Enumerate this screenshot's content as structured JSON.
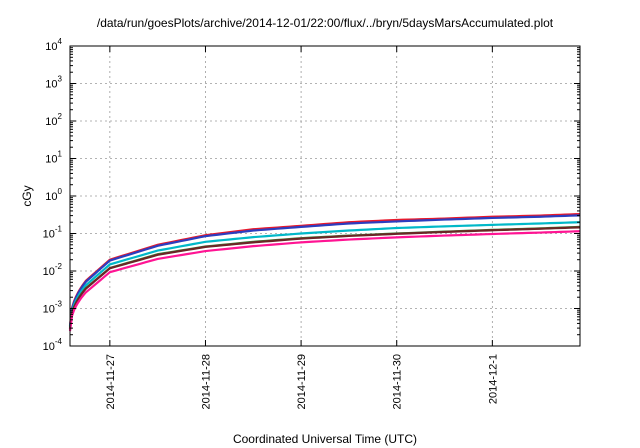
{
  "chart_data": {
    "type": "line",
    "title": "/data/run/goesPlots/archive/2014-12-01/22:00/flux/../bryn/5daysMarsAccumulated.plot",
    "xlabel": "Coordinated Universal Time (UTC)",
    "ylabel": "cGy",
    "y_scale": "log",
    "ylim": [
      0.0001,
      10000
    ],
    "y_ticks": [
      {
        "value": 0.0001,
        "base": "10",
        "exp": "-4"
      },
      {
        "value": 0.001,
        "base": "10",
        "exp": "-3"
      },
      {
        "value": 0.01,
        "base": "10",
        "exp": "-2"
      },
      {
        "value": 0.1,
        "base": "10",
        "exp": "-1"
      },
      {
        "value": 1,
        "base": "10",
        "exp": "0"
      },
      {
        "value": 10,
        "base": "10",
        "exp": "1"
      },
      {
        "value": 100,
        "base": "10",
        "exp": "2"
      },
      {
        "value": 1000,
        "base": "10",
        "exp": "3"
      },
      {
        "value": 10000,
        "base": "10",
        "exp": "4"
      }
    ],
    "xlim": [
      "2014-11-26 14:00",
      "2014-12-01 22:00"
    ],
    "x_ticks": [
      "2014-11-27",
      "2014-11-28",
      "2014-11-29",
      "2014-11-30",
      "2014-12-1"
    ],
    "grid": true,
    "legend": "none",
    "series": [
      {
        "color": "#e8192c",
        "points": [
          [
            "2014-11-26 14:00",
            0.00035
          ],
          [
            "2014-11-26 18:00",
            0.0055
          ],
          [
            "2014-11-27 00:00",
            0.02
          ],
          [
            "2014-11-27 12:00",
            0.05
          ],
          [
            "2014-11-28 00:00",
            0.09
          ],
          [
            "2014-11-28 12:00",
            0.13
          ],
          [
            "2014-11-29 00:00",
            0.16
          ],
          [
            "2014-11-29 12:00",
            0.2
          ],
          [
            "2014-11-30 00:00",
            0.23
          ],
          [
            "2014-11-30 12:00",
            0.25
          ],
          [
            "2014-12-01 00:00",
            0.28
          ],
          [
            "2014-12-01 12:00",
            0.3
          ],
          [
            "2014-12-01 22:00",
            0.33
          ]
        ]
      },
      {
        "color": "#2c3dbf",
        "points": [
          [
            "2014-11-26 14:00",
            0.00033
          ],
          [
            "2014-11-26 18:00",
            0.0052
          ],
          [
            "2014-11-27 00:00",
            0.019
          ],
          [
            "2014-11-27 12:00",
            0.047
          ],
          [
            "2014-11-28 00:00",
            0.085
          ],
          [
            "2014-11-28 12:00",
            0.12
          ],
          [
            "2014-11-29 00:00",
            0.15
          ],
          [
            "2014-11-29 12:00",
            0.185
          ],
          [
            "2014-11-30 00:00",
            0.21
          ],
          [
            "2014-11-30 12:00",
            0.235
          ],
          [
            "2014-12-01 00:00",
            0.26
          ],
          [
            "2014-12-01 12:00",
            0.28
          ],
          [
            "2014-12-01 22:00",
            0.305
          ]
        ]
      },
      {
        "color": "#00b8c8",
        "points": [
          [
            "2014-11-26 14:00",
            0.0003
          ],
          [
            "2014-11-26 18:00",
            0.0042
          ],
          [
            "2014-11-27 00:00",
            0.015
          ],
          [
            "2014-11-27 12:00",
            0.035
          ],
          [
            "2014-11-28 00:00",
            0.06
          ],
          [
            "2014-11-28 12:00",
            0.08
          ],
          [
            "2014-11-29 00:00",
            0.1
          ],
          [
            "2014-11-29 12:00",
            0.12
          ],
          [
            "2014-11-30 00:00",
            0.14
          ],
          [
            "2014-11-30 12:00",
            0.155
          ],
          [
            "2014-12-01 00:00",
            0.17
          ],
          [
            "2014-12-01 12:00",
            0.185
          ],
          [
            "2014-12-01 22:00",
            0.2
          ]
        ]
      },
      {
        "color": "#3a8a3a",
        "points": [
          [
            "2014-11-26 14:00",
            0.00028
          ],
          [
            "2014-11-26 18:00",
            0.0035
          ],
          [
            "2014-11-27 00:00",
            0.012
          ],
          [
            "2014-11-27 12:00",
            0.028
          ],
          [
            "2014-11-28 00:00",
            0.045
          ],
          [
            "2014-11-28 12:00",
            0.06
          ],
          [
            "2014-11-29 00:00",
            0.075
          ],
          [
            "2014-11-29 12:00",
            0.088
          ],
          [
            "2014-11-30 00:00",
            0.1
          ],
          [
            "2014-11-30 12:00",
            0.112
          ],
          [
            "2014-12-01 00:00",
            0.125
          ],
          [
            "2014-12-01 12:00",
            0.137
          ],
          [
            "2014-12-01 22:00",
            0.15
          ]
        ]
      },
      {
        "color": "#6b2525",
        "points": [
          [
            "2014-11-26 14:00",
            0.00028
          ],
          [
            "2014-11-26 18:00",
            0.0034
          ],
          [
            "2014-11-27 00:00",
            0.0118
          ],
          [
            "2014-11-27 12:00",
            0.027
          ],
          [
            "2014-11-28 00:00",
            0.044
          ],
          [
            "2014-11-28 12:00",
            0.058
          ],
          [
            "2014-11-29 00:00",
            0.073
          ],
          [
            "2014-11-29 12:00",
            0.086
          ],
          [
            "2014-11-30 00:00",
            0.098
          ],
          [
            "2014-11-30 12:00",
            0.11
          ],
          [
            "2014-12-01 00:00",
            0.122
          ],
          [
            "2014-12-01 12:00",
            0.134
          ],
          [
            "2014-12-01 22:00",
            0.146
          ]
        ]
      },
      {
        "color": "#ff1493",
        "points": [
          [
            "2014-11-26 14:00",
            0.00025
          ],
          [
            "2014-11-26 18:00",
            0.0027
          ],
          [
            "2014-11-27 00:00",
            0.0093
          ],
          [
            "2014-11-27 12:00",
            0.021
          ],
          [
            "2014-11-28 00:00",
            0.034
          ],
          [
            "2014-11-28 12:00",
            0.046
          ],
          [
            "2014-11-29 00:00",
            0.058
          ],
          [
            "2014-11-29 12:00",
            0.069
          ],
          [
            "2014-11-30 00:00",
            0.079
          ],
          [
            "2014-11-30 12:00",
            0.088
          ],
          [
            "2014-12-01 00:00",
            0.097
          ],
          [
            "2014-12-01 12:00",
            0.106
          ],
          [
            "2014-12-01 22:00",
            0.115
          ]
        ]
      }
    ]
  }
}
